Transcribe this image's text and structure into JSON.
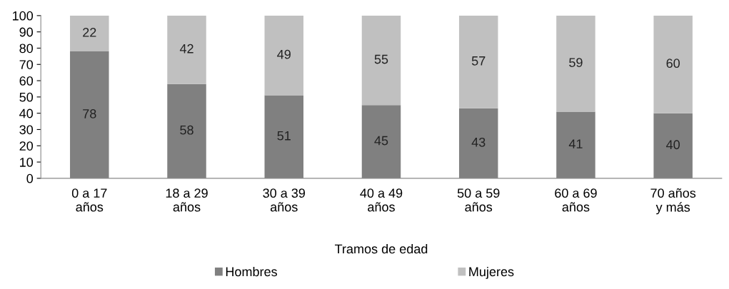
{
  "chart_data": {
    "type": "bar",
    "stacked": true,
    "xlabel": "Tramos de edad",
    "categories": [
      "0 a 17\naños",
      "18 a 29\naños",
      "30 a 39\naños",
      "40 a 49\naños",
      "50 a 59\naños",
      "60 a 69\naños",
      "70 años\ny más"
    ],
    "series": [
      {
        "name": "Hombres",
        "color": "#808080",
        "values": [
          78,
          58,
          51,
          45,
          43,
          41,
          40
        ]
      },
      {
        "name": "Mujeres",
        "color": "#c0c0c0",
        "values": [
          22,
          42,
          49,
          55,
          57,
          59,
          60
        ]
      }
    ],
    "ylim": [
      0,
      100
    ],
    "yticks": [
      0,
      10,
      20,
      30,
      40,
      50,
      60,
      70,
      80,
      90,
      100
    ],
    "data_labels": true,
    "grid": false,
    "legend": "bottom"
  }
}
